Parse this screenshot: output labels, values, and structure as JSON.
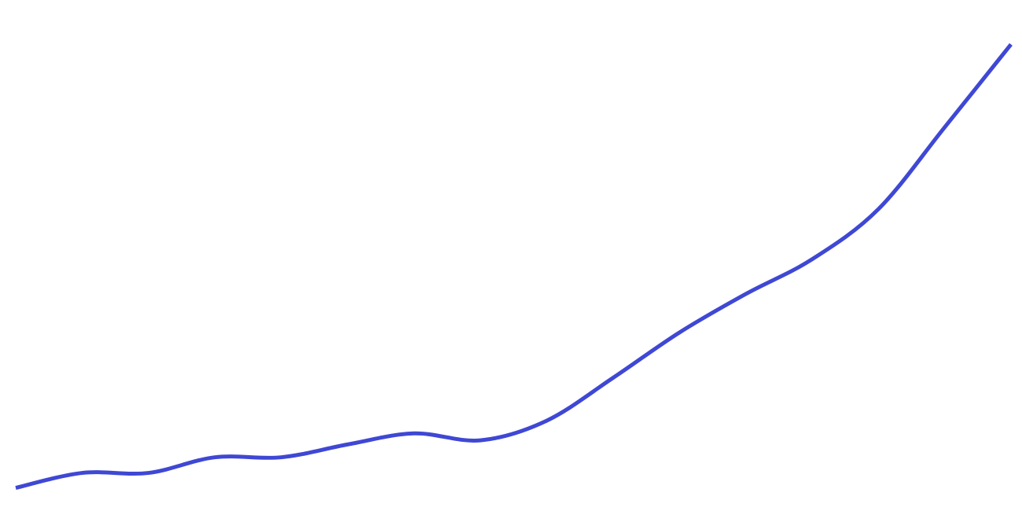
{
  "colors": {
    "background": "#ffffff",
    "line": "#3f48d4"
  },
  "chart_data": {
    "type": "line",
    "title": "",
    "xlabel": "",
    "ylabel": "",
    "grid": false,
    "x": [
      0,
      1,
      2,
      3,
      4,
      5,
      6,
      7,
      8,
      9,
      10,
      11,
      12,
      13,
      14,
      15
    ],
    "series": [
      {
        "values": [
          4,
          19.5,
          19.5,
          35.7,
          35.7,
          49,
          60.5,
          53.3,
          73.6,
          118,
          165,
          205,
          241,
          293,
          378,
          464
        ]
      }
    ],
    "xlim": [
      0,
      15
    ],
    "ylim": [
      -20,
      510
    ]
  }
}
